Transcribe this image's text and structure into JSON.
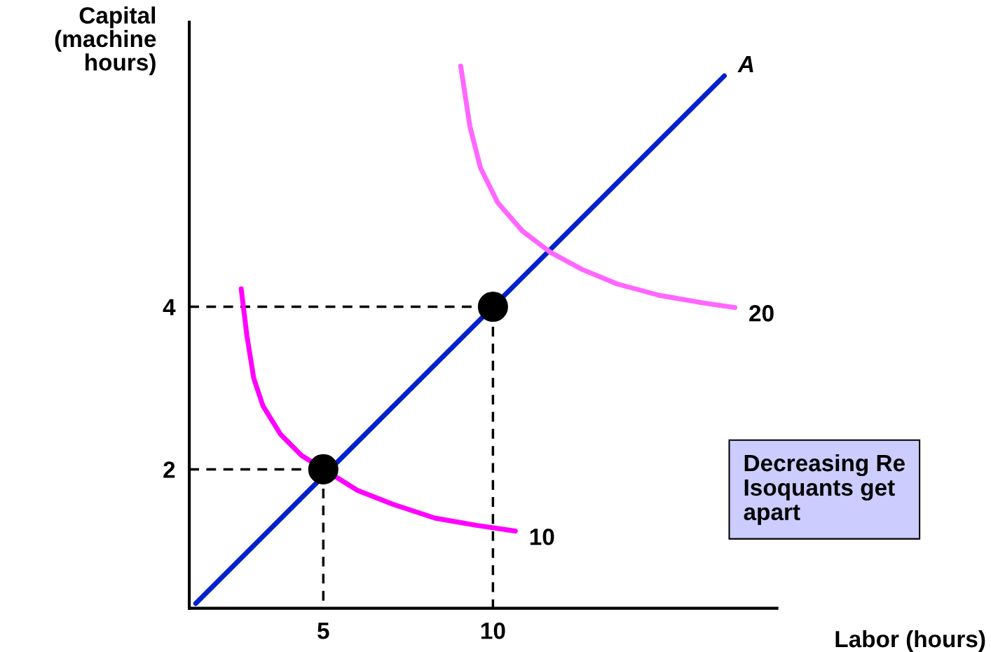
{
  "chart_data": {
    "type": "line",
    "xlabel": "Labor (hours)",
    "ylabel": "Capital\n(machine\nhours)",
    "xlim": [
      1.05,
      18.37
    ],
    "ylim": [
      0.29,
      7.5
    ],
    "xticks": [
      5,
      10
    ],
    "yticks": [
      2,
      4
    ],
    "grid": false,
    "legend": false,
    "series": [
      {
        "name": "A",
        "color": "#0022cc",
        "x": [
          1.24,
          16.82
        ],
        "values": [
          0.35,
          6.84
        ]
      },
      {
        "name": "10",
        "color": "#ff00ff",
        "x": [
          2.58,
          2.75,
          2.95,
          3.22,
          3.74,
          4.36,
          6.01,
          7.05,
          8.29,
          9.52,
          10.66
        ],
        "values": [
          4.22,
          3.64,
          3.12,
          2.78,
          2.43,
          2.17,
          1.74,
          1.57,
          1.4,
          1.31,
          1.24
        ]
      },
      {
        "name": "20",
        "color": "#ff66ff",
        "x": [
          9.05,
          9.32,
          9.63,
          10.14,
          10.87,
          11.69,
          12.62,
          13.66,
          14.9,
          16.14,
          17.13
        ],
        "values": [
          6.96,
          6.22,
          5.71,
          5.28,
          4.93,
          4.67,
          4.46,
          4.28,
          4.14,
          4.05,
          3.99
        ]
      },
      {
        "type": "line",
        "line_style": "dashed",
        "color": "#000000",
        "x": [
          1.05,
          5,
          5
        ],
        "values": [
          2,
          2,
          0.29
        ]
      },
      {
        "type": "line",
        "line_style": "dashed",
        "color": "#000000",
        "x": [
          1.05,
          10,
          10
        ],
        "values": [
          4,
          4,
          0.29
        ]
      },
      {
        "type": "scatter",
        "marker": "circle",
        "color": "#000000",
        "x": [
          5,
          10
        ],
        "values": [
          2,
          4
        ]
      }
    ],
    "annotations": [
      "Decreasing Re\nIsoquants get\napart"
    ]
  }
}
